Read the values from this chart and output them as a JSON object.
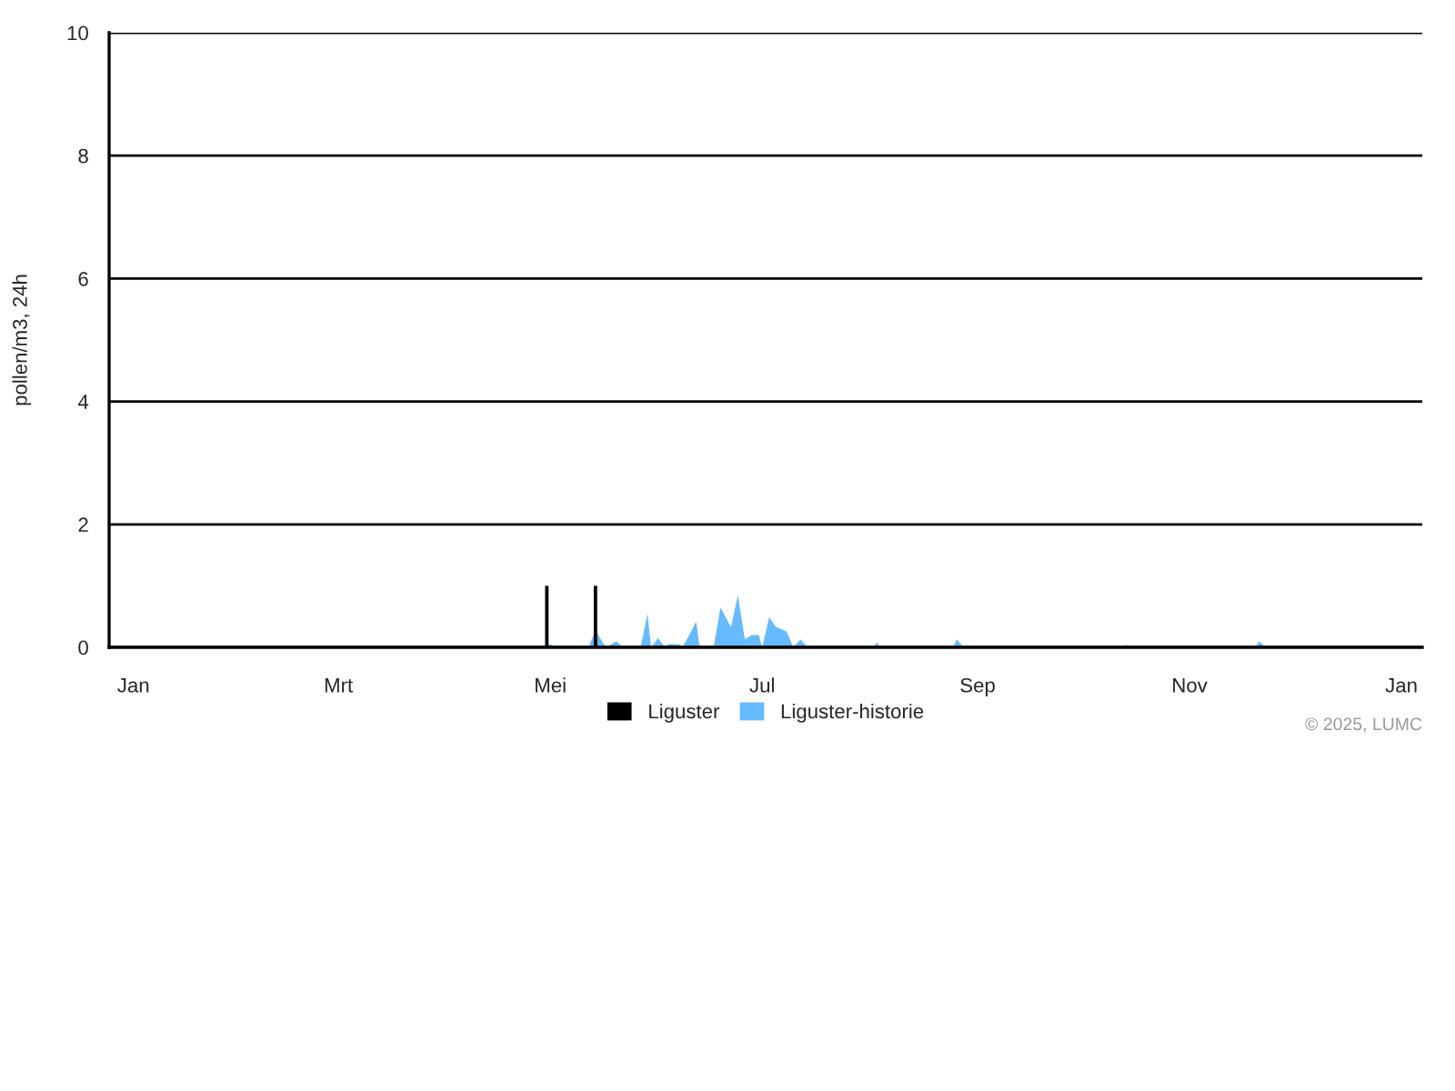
{
  "chart_data": {
    "type": "area",
    "ylabel": "pollen/m3, 24h",
    "xlim": [
      "2024-12-25",
      "2026-01-07"
    ],
    "xticks": [
      {
        "value": "2025-01-01",
        "label": "Jan"
      },
      {
        "value": "2025-03-01",
        "label": "Mrt"
      },
      {
        "value": "2025-05-01",
        "label": "Mei"
      },
      {
        "value": "2025-07-01",
        "label": "Jul"
      },
      {
        "value": "2025-09-01",
        "label": "Sep"
      },
      {
        "value": "2025-11-01",
        "label": "Nov"
      },
      {
        "value": "2026-01-01",
        "label": "Jan"
      }
    ],
    "ylim": [
      0,
      10
    ],
    "yticks": [
      0,
      2,
      4,
      6,
      8,
      10
    ],
    "grid": "y",
    "legend": "bottom",
    "annotations": [
      "© 2025, LUMC"
    ],
    "series": [
      {
        "name": "Liguster",
        "type": "bar",
        "color": "#000000",
        "x": [
          "2025-04-30",
          "2025-05-14"
        ],
        "values": [
          1,
          1
        ]
      },
      {
        "name": "Liguster-historie",
        "color": "#66bbff",
        "x": [
          "2025-01-01",
          "2025-04-29",
          "2025-05-01",
          "2025-05-03",
          "2025-05-12",
          "2025-05-14",
          "2025-05-17",
          "2025-05-20",
          "2025-05-22",
          "2025-05-27",
          "2025-05-29",
          "2025-05-30",
          "2025-06-01",
          "2025-06-03",
          "2025-06-04",
          "2025-06-07",
          "2025-06-08",
          "2025-06-10",
          "2025-06-12",
          "2025-06-13",
          "2025-06-17",
          "2025-06-19",
          "2025-06-22",
          "2025-06-24",
          "2025-06-26",
          "2025-06-28",
          "2025-06-30",
          "2025-07-01",
          "2025-07-03",
          "2025-07-05",
          "2025-07-08",
          "2025-07-10",
          "2025-07-12",
          "2025-07-14",
          "2025-07-28",
          "2025-07-29",
          "2025-07-30",
          "2025-08-02",
          "2025-08-03",
          "2025-08-04",
          "2025-08-25",
          "2025-08-26",
          "2025-08-28",
          "2025-09-13",
          "2025-09-14",
          "2025-09-15",
          "2025-09-20",
          "2025-09-21",
          "2025-09-22",
          "2025-10-02",
          "2025-10-03",
          "2025-10-04",
          "2025-10-07",
          "2025-10-08",
          "2025-10-09",
          "2025-10-13",
          "2025-10-14",
          "2025-10-15",
          "2025-10-20",
          "2025-10-21",
          "2025-10-22",
          "2025-11-01",
          "2025-11-02",
          "2025-11-03",
          "2025-11-20",
          "2025-11-21",
          "2025-11-23",
          "2025-12-06",
          "2025-12-07",
          "2025-12-08",
          "2025-12-31"
        ],
        "values": [
          0,
          0,
          0.05,
          0,
          0,
          0.27,
          0,
          0.1,
          0,
          0,
          0.55,
          0,
          0.15,
          0,
          0.05,
          0.05,
          0,
          0.2,
          0.42,
          0,
          0,
          0.65,
          0.33,
          0.85,
          0.13,
          0.2,
          0.2,
          0,
          0.49,
          0.33,
          0.26,
          0,
          0.13,
          0,
          0,
          0.03,
          0,
          0,
          0.08,
          0,
          0,
          0.13,
          0,
          0,
          0.03,
          0,
          0,
          0.03,
          0,
          0,
          0.03,
          0,
          0,
          0.03,
          0,
          0,
          0.04,
          0,
          0,
          0.03,
          0,
          0,
          0.03,
          0,
          0,
          0.1,
          0,
          0,
          0.03,
          0,
          0
        ]
      }
    ]
  }
}
